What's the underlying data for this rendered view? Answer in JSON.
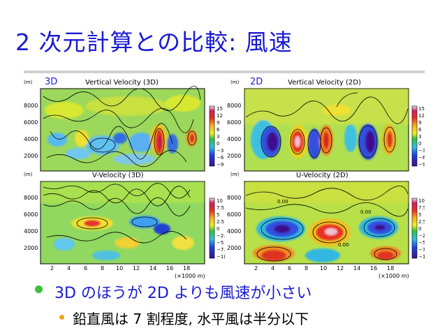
{
  "slide": {
    "title": "2 次元計算との比較: 風速",
    "bullet1": "3D のほうが 2D よりも風速が小さい",
    "bullet2": "鉛直風は 7 割程度, 水平風は半分以下"
  },
  "figure": {
    "labels": {
      "three_d": "3D",
      "two_d": "2D"
    },
    "panels": [
      {
        "title": "Vertical Velocity (3D)",
        "unit": "(m)"
      },
      {
        "title": "Vertical Velocity (2D)",
        "unit": "(m)"
      },
      {
        "title": "V-Velocity (3D)",
        "unit": "(m)"
      },
      {
        "title": "U-Velocity (2D)",
        "unit": "(m)"
      }
    ],
    "y_ticks": [
      "8000",
      "6000",
      "4000",
      "2000"
    ],
    "x_ticks": [
      "2",
      "4",
      "6",
      "8",
      "10",
      "12",
      "14",
      "16",
      "18"
    ],
    "x_unit": "(×1000 m)",
    "colorbar_top": [
      "15",
      "12",
      "9",
      "6",
      "3",
      "0",
      "−3",
      "−6",
      "−9"
    ],
    "colorbar_bottom": [
      "10",
      "7.5",
      "5",
      "2.5",
      "0",
      "−2.",
      "−5",
      "−7.",
      "−1("
    ],
    "contour_label": "0.00"
  }
}
